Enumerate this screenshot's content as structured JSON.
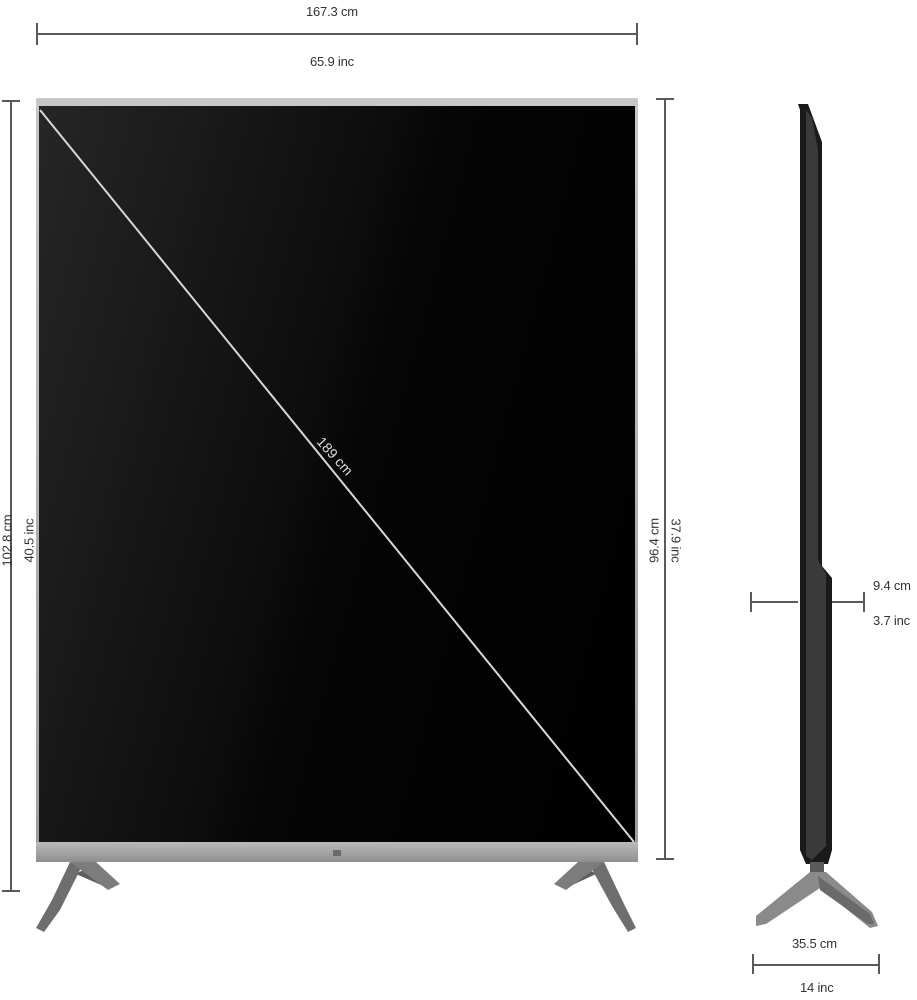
{
  "dimensions": {
    "front_width_cm": "167.3 cm",
    "front_width_inch": "65.9 inc",
    "diagonal_cm": "189 cm",
    "total_height_cm": "102.8 cm",
    "total_height_inch": "40.5 inc",
    "screen_height_cm": "96.4 cm",
    "screen_height_inch": "37.9 inc",
    "depth_cm": "9.4 cm",
    "depth_inch": "3.7 inc",
    "stand_depth_cm": "35.5 cm",
    "stand_depth_inch": "14 inc"
  },
  "colors": {
    "screen": "#000000",
    "frame": "#b5b5b5",
    "dimension_line": "#5a5a5a"
  }
}
